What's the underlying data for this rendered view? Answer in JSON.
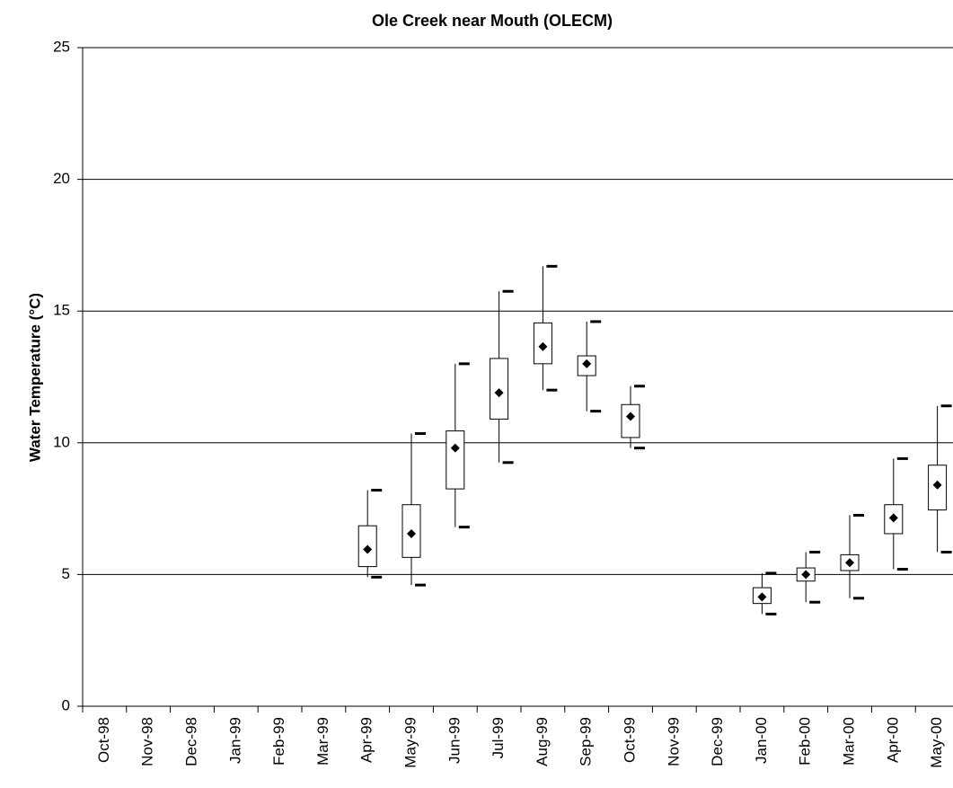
{
  "chart_data": {
    "type": "box",
    "title": "Ole Creek near Mouth (OLECM)",
    "y_label": "Water Temperature (°C)",
    "categories": [
      "Oct-98",
      "Nov-98",
      "Dec-98",
      "Jan-99",
      "Feb-99",
      "Mar-99",
      "Apr-99",
      "May-99",
      "Jun-99",
      "Jul-99",
      "Aug-99",
      "Sep-99",
      "Oct-99",
      "Nov-99",
      "Dec-99",
      "Jan-00",
      "Feb-00",
      "Mar-00",
      "Apr-00",
      "May-00"
    ],
    "min": [
      null,
      null,
      null,
      null,
      null,
      null,
      4.9,
      4.6,
      6.8,
      9.25,
      12.0,
      11.2,
      9.8,
      null,
      null,
      3.5,
      3.95,
      4.1,
      5.2,
      5.85
    ],
    "q1": [
      null,
      null,
      null,
      null,
      null,
      null,
      5.3,
      5.65,
      8.25,
      10.9,
      13.0,
      12.55,
      10.2,
      null,
      null,
      3.9,
      4.75,
      5.15,
      6.55,
      7.45
    ],
    "mean": [
      null,
      null,
      null,
      null,
      null,
      null,
      5.95,
      6.55,
      9.8,
      11.9,
      13.65,
      13.0,
      11.0,
      null,
      null,
      4.15,
      5.0,
      5.45,
      7.15,
      8.4
    ],
    "q3": [
      null,
      null,
      null,
      null,
      null,
      null,
      6.85,
      7.65,
      10.45,
      13.2,
      14.55,
      13.3,
      11.45,
      null,
      null,
      4.5,
      5.25,
      5.75,
      7.65,
      9.15
    ],
    "max": [
      null,
      null,
      null,
      null,
      null,
      null,
      8.2,
      10.35,
      13.0,
      15.75,
      16.7,
      14.6,
      12.15,
      null,
      null,
      5.05,
      5.85,
      7.25,
      9.4,
      11.4
    ],
    "ylim": [
      0,
      25
    ],
    "yticks": [
      0,
      5,
      10,
      15,
      20,
      25
    ],
    "grid": true,
    "color": "#000000"
  }
}
